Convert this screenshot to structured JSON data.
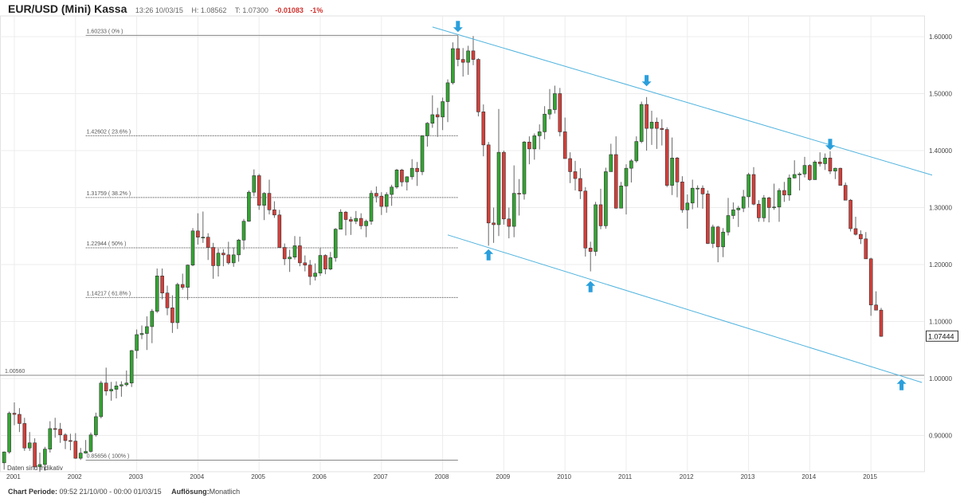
{
  "header": {
    "title": "EUR/USD (Mini) Kassa",
    "time": "13:26 10/03/15",
    "high": "H: 1.08562",
    "low": "T: 1.07300",
    "change": "-0.01083",
    "change_pct": "-1%"
  },
  "footer": {
    "period_label": "Chart Periode:",
    "period_value": "09:52 21/10/00 - 00:00 01/03/15",
    "resolution_label": "Auflösung:",
    "resolution_value": "Monatlich"
  },
  "disclaimer": "Daten sind Indikativ",
  "chart_data": {
    "type": "candlestick",
    "interval": "monthly",
    "start": "2000-11",
    "colors": {
      "up": "#33a532",
      "down": "#d43f3a",
      "trend": "#4fb3de",
      "arrow": "#2a9fdc"
    },
    "ylim": [
      0.84,
      1.64
    ],
    "yticks": [
      "0.90000",
      "1.00000",
      "1.10000",
      "1.20000",
      "1.30000",
      "1.40000",
      "1.50000",
      "1.60000"
    ],
    "xticks": [
      "2001",
      "2002",
      "2003",
      "2004",
      "2005",
      "2006",
      "2007",
      "2008",
      "2009",
      "2010",
      "2011",
      "2012",
      "2013",
      "2014",
      "2015"
    ],
    "grid": true,
    "last_price": "1.07444",
    "fib_levels": [
      {
        "value": 1.60233,
        "label": "1.60233 ( 0% )"
      },
      {
        "value": 1.42602,
        "label": "1.42602 ( 23.6% )"
      },
      {
        "value": 1.31759,
        "label": "1.31759 ( 38.2% )"
      },
      {
        "value": 1.22944,
        "label": "1.22944 ( 50% )"
      },
      {
        "value": 1.14217,
        "label": "1.14217 ( 61.8% )"
      },
      {
        "value": 0.85656,
        "label": "0.85656 ( 100% )"
      }
    ],
    "fib_range": [
      "2002-03",
      "2008-04"
    ],
    "horizontal_line": {
      "value": 1.0056,
      "label": "1.00560"
    },
    "trend_lines": [
      {
        "from": [
          "2007-11",
          1.617
        ],
        "to": [
          "2016-01",
          1.357
        ]
      },
      {
        "from": [
          "2008-02",
          1.252
        ],
        "to": [
          "2015-11",
          0.993
        ]
      }
    ],
    "arrows": [
      {
        "date": "2008-04",
        "price": 1.608,
        "direction": "down"
      },
      {
        "date": "2011-05",
        "price": 1.513,
        "direction": "down"
      },
      {
        "date": "2014-05",
        "price": 1.401,
        "direction": "down"
      },
      {
        "date": "2008-10",
        "price": 1.227,
        "direction": "up"
      },
      {
        "date": "2010-06",
        "price": 1.171,
        "direction": "up"
      },
      {
        "date": "2015-07",
        "price": 0.999,
        "direction": "up"
      }
    ],
    "ohlc": [
      [
        0.852,
        0.872,
        0.84,
        0.871
      ],
      [
        0.871,
        0.942,
        0.868,
        0.939
      ],
      [
        0.939,
        0.958,
        0.918,
        0.937
      ],
      [
        0.937,
        0.948,
        0.906,
        0.921
      ],
      [
        0.921,
        0.931,
        0.873,
        0.878
      ],
      [
        0.878,
        0.906,
        0.873,
        0.887
      ],
      [
        0.887,
        0.895,
        0.843,
        0.845
      ],
      [
        0.845,
        0.87,
        0.836,
        0.849
      ],
      [
        0.849,
        0.88,
        0.838,
        0.876
      ],
      [
        0.876,
        0.925,
        0.87,
        0.912
      ],
      [
        0.912,
        0.931,
        0.896,
        0.911
      ],
      [
        0.911,
        0.922,
        0.887,
        0.901
      ],
      [
        0.901,
        0.904,
        0.876,
        0.891
      ],
      [
        0.891,
        0.903,
        0.874,
        0.89
      ],
      [
        0.89,
        0.904,
        0.859,
        0.86
      ],
      [
        0.86,
        0.878,
        0.857,
        0.869
      ],
      [
        0.869,
        0.892,
        0.868,
        0.872
      ],
      [
        0.872,
        0.905,
        0.87,
        0.901
      ],
      [
        0.901,
        0.94,
        0.898,
        0.933
      ],
      [
        0.933,
        0.996,
        0.93,
        0.992
      ],
      [
        0.992,
        1.019,
        0.97,
        0.978
      ],
      [
        0.978,
        0.994,
        0.961,
        0.981
      ],
      [
        0.981,
        0.995,
        0.965,
        0.987
      ],
      [
        0.987,
        0.995,
        0.968,
        0.989
      ],
      [
        0.989,
        1.014,
        0.986,
        0.992
      ],
      [
        0.992,
        1.05,
        0.985,
        1.049
      ],
      [
        1.049,
        1.086,
        1.035,
        1.077
      ],
      [
        1.077,
        1.093,
        1.069,
        1.079
      ],
      [
        1.079,
        1.109,
        1.05,
        1.091
      ],
      [
        1.091,
        1.122,
        1.062,
        1.118
      ],
      [
        1.118,
        1.193,
        1.115,
        1.18
      ],
      [
        1.18,
        1.193,
        1.139,
        1.15
      ],
      [
        1.15,
        1.163,
        1.111,
        1.124
      ],
      [
        1.124,
        1.146,
        1.08,
        1.098
      ],
      [
        1.098,
        1.168,
        1.087,
        1.165
      ],
      [
        1.165,
        1.184,
        1.156,
        1.16
      ],
      [
        1.16,
        1.2,
        1.138,
        1.199
      ],
      [
        1.199,
        1.264,
        1.197,
        1.259
      ],
      [
        1.259,
        1.29,
        1.235,
        1.248
      ],
      [
        1.248,
        1.293,
        1.238,
        1.248
      ],
      [
        1.248,
        1.255,
        1.208,
        1.23
      ],
      [
        1.23,
        1.238,
        1.175,
        1.198
      ],
      [
        1.198,
        1.228,
        1.179,
        1.22
      ],
      [
        1.22,
        1.227,
        1.197,
        1.217
      ],
      [
        1.217,
        1.24,
        1.2,
        1.203
      ],
      [
        1.203,
        1.23,
        1.196,
        1.217
      ],
      [
        1.217,
        1.245,
        1.205,
        1.243
      ],
      [
        1.243,
        1.28,
        1.226,
        1.276
      ],
      [
        1.276,
        1.33,
        1.275,
        1.327
      ],
      [
        1.327,
        1.367,
        1.32,
        1.356
      ],
      [
        1.356,
        1.359,
        1.296,
        1.304
      ],
      [
        1.304,
        1.327,
        1.278,
        1.325
      ],
      [
        1.325,
        1.349,
        1.288,
        1.296
      ],
      [
        1.296,
        1.311,
        1.282,
        1.287
      ],
      [
        1.287,
        1.296,
        1.229,
        1.23
      ],
      [
        1.23,
        1.237,
        1.199,
        1.21
      ],
      [
        1.21,
        1.226,
        1.187,
        1.213
      ],
      [
        1.213,
        1.25,
        1.209,
        1.233
      ],
      [
        1.233,
        1.249,
        1.197,
        1.203
      ],
      [
        1.203,
        1.216,
        1.188,
        1.199
      ],
      [
        1.199,
        1.208,
        1.164,
        1.179
      ],
      [
        1.179,
        1.202,
        1.172,
        1.185
      ],
      [
        1.185,
        1.229,
        1.18,
        1.216
      ],
      [
        1.216,
        1.218,
        1.183,
        1.192
      ],
      [
        1.192,
        1.222,
        1.19,
        1.212
      ],
      [
        1.212,
        1.264,
        1.205,
        1.262
      ],
      [
        1.262,
        1.297,
        1.262,
        1.292
      ],
      [
        1.292,
        1.294,
        1.251,
        1.279
      ],
      [
        1.279,
        1.284,
        1.252,
        1.276
      ],
      [
        1.276,
        1.294,
        1.271,
        1.281
      ],
      [
        1.281,
        1.29,
        1.262,
        1.268
      ],
      [
        1.268,
        1.279,
        1.248,
        1.276
      ],
      [
        1.276,
        1.33,
        1.27,
        1.325
      ],
      [
        1.325,
        1.337,
        1.309,
        1.32
      ],
      [
        1.32,
        1.327,
        1.287,
        1.302
      ],
      [
        1.302,
        1.327,
        1.291,
        1.323
      ],
      [
        1.323,
        1.34,
        1.303,
        1.336
      ],
      [
        1.336,
        1.368,
        1.333,
        1.366
      ],
      [
        1.366,
        1.368,
        1.337,
        1.345
      ],
      [
        1.345,
        1.355,
        1.33,
        1.354
      ],
      [
        1.354,
        1.385,
        1.349,
        1.369
      ],
      [
        1.369,
        1.38,
        1.338,
        1.363
      ],
      [
        1.363,
        1.427,
        1.357,
        1.426
      ],
      [
        1.426,
        1.45,
        1.407,
        1.448
      ],
      [
        1.448,
        1.497,
        1.44,
        1.463
      ],
      [
        1.463,
        1.475,
        1.424,
        1.459
      ],
      [
        1.459,
        1.493,
        1.436,
        1.486
      ],
      [
        1.486,
        1.525,
        1.45,
        1.519
      ],
      [
        1.519,
        1.59,
        1.516,
        1.579
      ],
      [
        1.579,
        1.602,
        1.548,
        1.56
      ],
      [
        1.56,
        1.58,
        1.53,
        1.555
      ],
      [
        1.555,
        1.584,
        1.533,
        1.575
      ],
      [
        1.575,
        1.601,
        1.55,
        1.56
      ],
      [
        1.56,
        1.562,
        1.46,
        1.468
      ],
      [
        1.468,
        1.481,
        1.39,
        1.41
      ],
      [
        1.41,
        1.415,
        1.233,
        1.273
      ],
      [
        1.273,
        1.3,
        1.238,
        1.27
      ],
      [
        1.27,
        1.473,
        1.25,
        1.397
      ],
      [
        1.397,
        1.4,
        1.27,
        1.28
      ],
      [
        1.28,
        1.3,
        1.246,
        1.267
      ],
      [
        1.267,
        1.374,
        1.248,
        1.325
      ],
      [
        1.325,
        1.35,
        1.286,
        1.324
      ],
      [
        1.324,
        1.417,
        1.314,
        1.415
      ],
      [
        1.415,
        1.425,
        1.376,
        1.403
      ],
      [
        1.403,
        1.43,
        1.384,
        1.426
      ],
      [
        1.426,
        1.446,
        1.402,
        1.433
      ],
      [
        1.433,
        1.478,
        1.42,
        1.464
      ],
      [
        1.464,
        1.508,
        1.455,
        1.472
      ],
      [
        1.472,
        1.514,
        1.465,
        1.5
      ],
      [
        1.5,
        1.51,
        1.425,
        1.433
      ],
      [
        1.433,
        1.458,
        1.386,
        1.386
      ],
      [
        1.386,
        1.397,
        1.343,
        1.363
      ],
      [
        1.363,
        1.382,
        1.33,
        1.351
      ],
      [
        1.351,
        1.369,
        1.315,
        1.329
      ],
      [
        1.329,
        1.336,
        1.214,
        1.229
      ],
      [
        1.229,
        1.24,
        1.188,
        1.223
      ],
      [
        1.223,
        1.31,
        1.215,
        1.305
      ],
      [
        1.305,
        1.333,
        1.262,
        1.268
      ],
      [
        1.268,
        1.37,
        1.263,
        1.363
      ],
      [
        1.363,
        1.412,
        1.363,
        1.393
      ],
      [
        1.393,
        1.425,
        1.298,
        1.299
      ],
      [
        1.299,
        1.345,
        1.3,
        1.338
      ],
      [
        1.338,
        1.376,
        1.288,
        1.369
      ],
      [
        1.369,
        1.385,
        1.344,
        1.382
      ],
      [
        1.382,
        1.425,
        1.379,
        1.416
      ],
      [
        1.416,
        1.486,
        1.413,
        1.481
      ],
      [
        1.481,
        1.494,
        1.4,
        1.439
      ],
      [
        1.439,
        1.47,
        1.41,
        1.45
      ],
      [
        1.45,
        1.458,
        1.403,
        1.439
      ],
      [
        1.439,
        1.455,
        1.409,
        1.437
      ],
      [
        1.437,
        1.441,
        1.336,
        1.339
      ],
      [
        1.339,
        1.423,
        1.322,
        1.387
      ],
      [
        1.387,
        1.389,
        1.318,
        1.345
      ],
      [
        1.345,
        1.355,
        1.291,
        1.296
      ],
      [
        1.296,
        1.323,
        1.263,
        1.308
      ],
      [
        1.308,
        1.349,
        1.297,
        1.334
      ],
      [
        1.334,
        1.339,
        1.3,
        1.334
      ],
      [
        1.334,
        1.339,
        1.298,
        1.324
      ],
      [
        1.324,
        1.33,
        1.236,
        1.237
      ],
      [
        1.237,
        1.27,
        1.229,
        1.266
      ],
      [
        1.266,
        1.268,
        1.204,
        1.231
      ],
      [
        1.231,
        1.264,
        1.213,
        1.257
      ],
      [
        1.257,
        1.317,
        1.251,
        1.286
      ],
      [
        1.286,
        1.309,
        1.28,
        1.296
      ],
      [
        1.296,
        1.303,
        1.266,
        1.299
      ],
      [
        1.299,
        1.331,
        1.292,
        1.319
      ],
      [
        1.319,
        1.361,
        1.3,
        1.358
      ],
      [
        1.358,
        1.371,
        1.304,
        1.306
      ],
      [
        1.306,
        1.313,
        1.275,
        1.282
      ],
      [
        1.282,
        1.322,
        1.275,
        1.317
      ],
      [
        1.317,
        1.319,
        1.274,
        1.3
      ],
      [
        1.3,
        1.342,
        1.296,
        1.301
      ],
      [
        1.301,
        1.334,
        1.275,
        1.33
      ],
      [
        1.33,
        1.345,
        1.31,
        1.322
      ],
      [
        1.322,
        1.358,
        1.312,
        1.352
      ],
      [
        1.352,
        1.383,
        1.351,
        1.358
      ],
      [
        1.358,
        1.362,
        1.33,
        1.359
      ],
      [
        1.359,
        1.389,
        1.353,
        1.374
      ],
      [
        1.374,
        1.376,
        1.347,
        1.349
      ],
      [
        1.349,
        1.383,
        1.349,
        1.38
      ],
      [
        1.38,
        1.397,
        1.372,
        1.377
      ],
      [
        1.377,
        1.395,
        1.366,
        1.387
      ],
      [
        1.387,
        1.399,
        1.359,
        1.364
      ],
      [
        1.364,
        1.37,
        1.35,
        1.369
      ],
      [
        1.369,
        1.37,
        1.339,
        1.339
      ],
      [
        1.339,
        1.344,
        1.313,
        1.313
      ],
      [
        1.313,
        1.315,
        1.258,
        1.263
      ],
      [
        1.263,
        1.284,
        1.251,
        1.253
      ],
      [
        1.253,
        1.26,
        1.236,
        1.245
      ],
      [
        1.245,
        1.257,
        1.21,
        1.21
      ],
      [
        1.21,
        1.212,
        1.11,
        1.129
      ],
      [
        1.129,
        1.153,
        1.12,
        1.12
      ],
      [
        1.12,
        1.124,
        1.073,
        1.074
      ]
    ]
  }
}
